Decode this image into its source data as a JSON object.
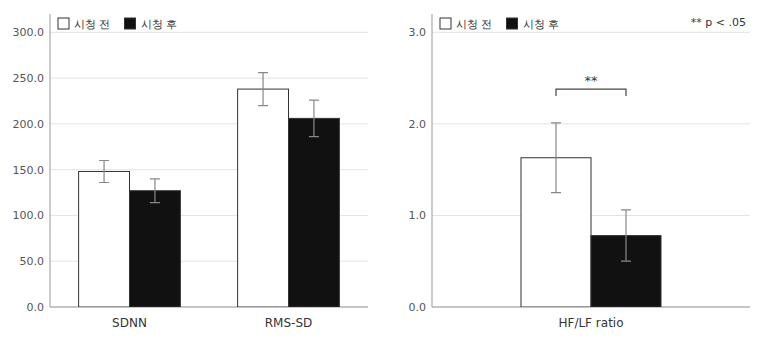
{
  "chart_data": [
    {
      "type": "bar",
      "categories": [
        "SDNN",
        "RMS-SD"
      ],
      "series": [
        {
          "name": "시청 전",
          "color": "#ffffff",
          "values": [
            148.0,
            238.0
          ],
          "errors": [
            12.0,
            18.0
          ]
        },
        {
          "name": "시청 후",
          "color": "#111111",
          "values": [
            127.0,
            206.0
          ],
          "errors": [
            13.0,
            20.0
          ]
        }
      ],
      "ylim": [
        0,
        320
      ],
      "yticks": [
        {
          "value": 0,
          "label": "0.0"
        },
        {
          "value": 50,
          "label": "50.0"
        },
        {
          "value": 100,
          "label": "100.0"
        },
        {
          "value": 150,
          "label": "150.0"
        },
        {
          "value": 200,
          "label": "200.0"
        },
        {
          "value": 250,
          "label": "250.0"
        },
        {
          "value": 300,
          "label": "300.0"
        }
      ],
      "grid": true,
      "legend": "upper left"
    },
    {
      "type": "bar",
      "categories": [
        "HF/LF ratio"
      ],
      "series": [
        {
          "name": "시청 전",
          "color": "#ffffff",
          "values": [
            1.63
          ],
          "errors": [
            0.38
          ]
        },
        {
          "name": "시청 후",
          "color": "#111111",
          "values": [
            0.78
          ],
          "errors": [
            0.28
          ]
        }
      ],
      "ylim": [
        0,
        3.2
      ],
      "yticks": [
        {
          "value": 0,
          "label": "0.0"
        },
        {
          "value": 1,
          "label": "1.0"
        },
        {
          "value": 2,
          "label": "2.0"
        },
        {
          "value": 3,
          "label": "3.0"
        }
      ],
      "grid": true,
      "legend": "upper left",
      "annotations": [
        {
          "text": "** p < .05"
        },
        {
          "text": "**",
          "y": 2.38
        }
      ]
    }
  ]
}
